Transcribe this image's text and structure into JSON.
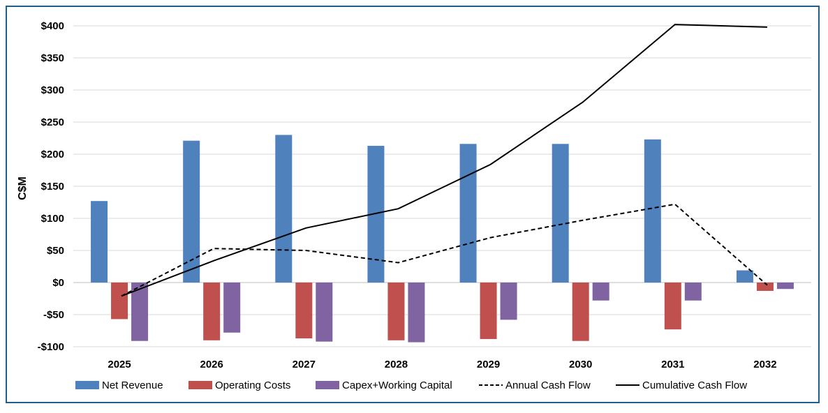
{
  "chart_data": {
    "type": "bar",
    "title": "",
    "xlabel": "",
    "ylabel": "C$M",
    "ylim": [
      -100,
      400
    ],
    "yticks": [
      400,
      350,
      300,
      250,
      200,
      150,
      100,
      50,
      0,
      -50,
      -100
    ],
    "ytick_labels": [
      "$400",
      "$350",
      "$300",
      "$250",
      "$200",
      "$150",
      "$100",
      "$50",
      "$0",
      "-$50",
      "-$100"
    ],
    "categories": [
      "2025",
      "2026",
      "2027",
      "2028",
      "2029",
      "2030",
      "2031",
      "2032"
    ],
    "grid": true,
    "legend_position": "bottom",
    "series": [
      {
        "name": "Net Revenue",
        "kind": "bar",
        "color": "#4f81bd",
        "values": [
          127,
          221,
          230,
          213,
          216,
          216,
          223,
          19
        ]
      },
      {
        "name": "Operating Costs",
        "kind": "bar",
        "color": "#c0504d",
        "values": [
          -57,
          -90,
          -87,
          -90,
          -88,
          -91,
          -73,
          -13
        ]
      },
      {
        "name": "Capex+Working Capital",
        "kind": "bar",
        "color": "#8064a2",
        "values": [
          -91,
          -78,
          -92,
          -93,
          -58,
          -28,
          -28,
          -10
        ]
      },
      {
        "name": "Annual Cash Flow",
        "kind": "line",
        "style": "dashed",
        "color": "#000000",
        "values": [
          -21,
          53,
          50,
          31,
          70,
          97,
          122,
          -4
        ]
      },
      {
        "name": "Cumulative Cash Flow",
        "kind": "line",
        "style": "solid",
        "color": "#000000",
        "values": [
          -21,
          34,
          85,
          115,
          184,
          281,
          402,
          398
        ]
      }
    ]
  }
}
